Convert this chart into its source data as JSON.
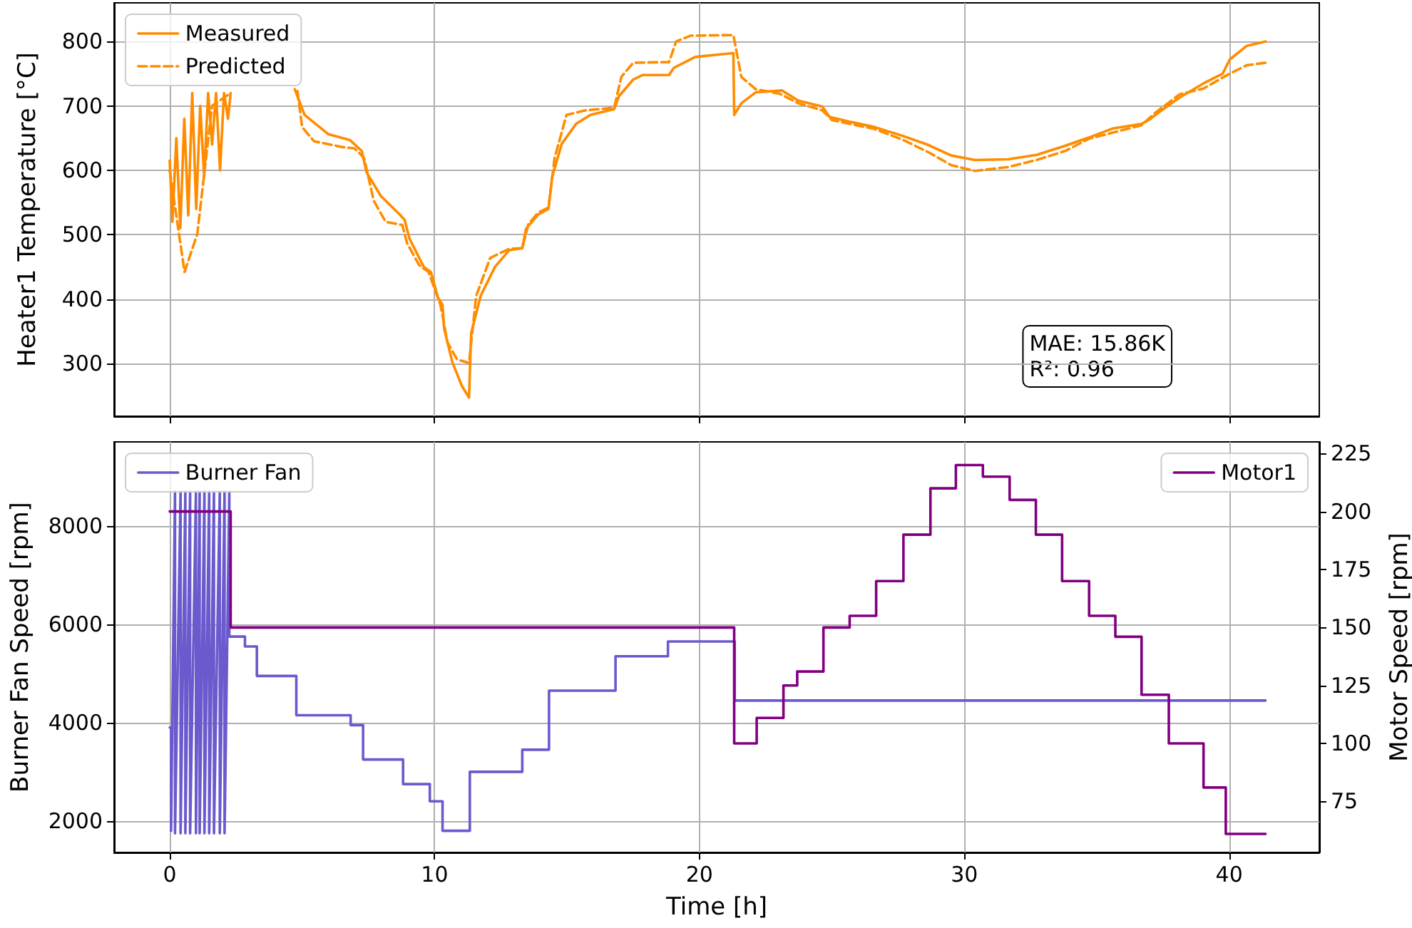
{
  "chart_data": [
    {
      "type": "line",
      "ylabel": "Heater1 Temperature [°C]",
      "xlim": [
        -2.1,
        43.4
      ],
      "xticks": [
        0,
        10,
        20,
        30,
        40
      ],
      "ylim": [
        218,
        860
      ],
      "yticks": [
        300,
        400,
        500,
        600,
        700,
        800
      ],
      "tick_labels": "y",
      "grid": true,
      "legend": "top left",
      "annotations": [
        "MAE: 15.86K\nR²: 0.96"
      ],
      "series": [
        {
          "name": "Measured",
          "color": "#ff8c00",
          "line_style": "solid",
          "x": [
            0,
            0.1,
            0.25,
            0.4,
            0.55,
            0.7,
            0.85,
            1.0,
            1.15,
            1.3,
            1.45,
            1.6,
            1.75,
            1.9,
            2.05,
            2.2,
            2.3,
            2.4,
            4.72,
            5.09,
            5.99,
            6.8,
            7.25,
            7.43,
            7.97,
            8.69,
            8.87,
            9.05,
            9.59,
            9.86,
            10.13,
            10.3,
            10.36,
            10.67,
            11.03,
            11.3,
            11.38,
            11.74,
            12.28,
            12.82,
            13.31,
            13.45,
            13.9,
            14.3,
            14.44,
            14.8,
            15.34,
            15.88,
            16.78,
            16.96,
            17.5,
            17.86,
            18.85,
            19.03,
            19.84,
            21.28,
            21.31,
            21.58,
            22.12,
            23.11,
            23.74,
            24.64,
            24.91,
            25.72,
            26.62,
            27.7,
            28.6,
            29.5,
            30.4,
            31.65,
            32.73,
            33.81,
            34.71,
            35.61,
            36.69,
            36.96,
            37.41,
            38.13,
            39.03,
            39.75,
            40.02,
            40.65,
            41.37
          ],
          "values": [
            615,
            520,
            650,
            510,
            680,
            530,
            720,
            540,
            700,
            590,
            720,
            640,
            720,
            600,
            720,
            680,
            720,
            null,
            726,
            686,
            656,
            647,
            630,
            597,
            560,
            531,
            523,
            494,
            450,
            442,
            402,
            391,
            354,
            302,
            265,
            247,
            347,
            405,
            450,
            476,
            479,
            509,
            531,
            540,
            590,
            641,
            672,
            686,
            695,
            715,
            741,
            748,
            748,
            759,
            776,
            782,
            686,
            704,
            721,
            724,
            708,
            699,
            683,
            675,
            667,
            653,
            640,
            623,
            616,
            617,
            624,
            638,
            651,
            665,
            672,
            678,
            692,
            713,
            735,
            750,
            772,
            793,
            800
          ]
        },
        {
          "name": "Predicted",
          "color": "#ff8d00",
          "line_style": "dashed",
          "x": [
            0,
            0.56,
            1.04,
            1.6,
            2.3,
            2.4,
            4.82,
            5.0,
            5.45,
            6.53,
            6.98,
            7.34,
            7.7,
            8.15,
            8.78,
            8.96,
            9.41,
            9.77,
            10.22,
            10.49,
            10.85,
            11.3,
            11.57,
            12.1,
            12.82,
            13.31,
            13.54,
            13.9,
            14.3,
            14.53,
            14.98,
            15.7,
            16.78,
            17.05,
            17.5,
            18.85,
            19.12,
            19.66,
            21.28,
            21.31,
            21.58,
            22.12,
            23.02,
            23.74,
            24.64,
            25.0,
            26.62,
            27.7,
            28.69,
            29.5,
            30.4,
            31.65,
            32.73,
            33.81,
            34.71,
            36.69,
            37.23,
            38.13,
            39.03,
            39.93,
            40.65,
            41.37
          ],
          "values": [
            600,
            442,
            501,
            700,
            720,
            null,
            723,
            667,
            645,
            636,
            634,
            619,
            553,
            520,
            515,
            487,
            453,
            442,
            391,
            332,
            306,
            301,
            405,
            464,
            478,
            479,
            516,
            534,
            542,
            619,
            686,
            693,
            697,
            745,
            767,
            768,
            800,
            809,
            810,
            810,
            745,
            726,
            719,
            704,
            693,
            678,
            664,
            647,
            627,
            608,
            599,
            605,
            616,
            630,
            649,
            670,
            690,
            718,
            727,
            748,
            763,
            767
          ]
        }
      ]
    },
    {
      "type": "line",
      "xlabel": "Time [h]",
      "ylabel": "Burner Fan Speed [rpm]",
      "y2label": "Motor Speed [rpm]",
      "xlim": [
        -2.1,
        43.4
      ],
      "xticks": [
        0,
        10,
        20,
        30,
        40
      ],
      "ylim": [
        1360,
        9710
      ],
      "yticks": [
        2000,
        4000,
        6000,
        8000
      ],
      "y2lim": [
        53,
        230
      ],
      "y2ticks": [
        75,
        100,
        125,
        150,
        175,
        200,
        225
      ],
      "grid": true,
      "legend": "top left",
      "series": [
        {
          "name": "Burner Fan",
          "color": "#6a5acd",
          "x": [
            0,
            0.05,
            0.05,
            0.2,
            0.2,
            0.41,
            0.41,
            0.59,
            0.59,
            0.77,
            0.77,
            0.99,
            0.99,
            1.13,
            1.13,
            1.31,
            1.31,
            1.49,
            1.49,
            1.67,
            1.67,
            1.89,
            1.89,
            2.07,
            2.07,
            2.25,
            2.25,
            2.84,
            2.84,
            3.29,
            3.29,
            4.78,
            4.78,
            6.83,
            6.83,
            7.3,
            7.3,
            8.81,
            8.81,
            9.82,
            9.82,
            10.3,
            10.3,
            11.33,
            11.33,
            13.31,
            13.31,
            14.32,
            14.32,
            16.83,
            16.83,
            18.81,
            18.81,
            21.33,
            21.33,
            41.37
          ],
          "values": [
            3900,
            3900,
            1800,
            8700,
            1750,
            8700,
            1750,
            8700,
            1750,
            8700,
            1750,
            8700,
            1750,
            8700,
            1750,
            8700,
            1750,
            8700,
            1750,
            8700,
            1750,
            8700,
            1750,
            8700,
            1750,
            8700,
            5750,
            5750,
            5550,
            5550,
            4950,
            4950,
            4150,
            4150,
            3950,
            3950,
            3250,
            3250,
            2750,
            2750,
            2400,
            2400,
            1800,
            1800,
            3000,
            3000,
            3450,
            3450,
            4650,
            4650,
            5350,
            5350,
            5650,
            5650,
            4450,
            4450
          ]
        },
        {
          "name": "Motor1",
          "color": "#800080",
          "axis": "y2",
          "x": [
            0,
            2.3,
            2.3,
            21.31,
            21.31,
            22.16,
            22.16,
            23.17,
            23.17,
            23.69,
            23.69,
            24.68,
            24.68,
            25.67,
            25.67,
            26.67,
            26.67,
            27.7,
            27.7,
            28.72,
            28.72,
            29.68,
            29.68,
            30.7,
            30.7,
            31.71,
            31.71,
            32.7,
            32.7,
            33.69,
            33.69,
            34.71,
            34.71,
            35.7,
            35.7,
            36.69,
            36.69,
            37.72,
            37.72,
            39.03,
            39.03,
            39.87,
            39.87,
            41.37
          ],
          "values": [
            200,
            200,
            150,
            150,
            100,
            100,
            111,
            111,
            125,
            125,
            131,
            131,
            150,
            150,
            155,
            155,
            170,
            170,
            190,
            190,
            210,
            210,
            220,
            220,
            215,
            215,
            205,
            205,
            190,
            190,
            170,
            170,
            155,
            155,
            146,
            146,
            121,
            121,
            100,
            100,
            81,
            81,
            61,
            61
          ]
        }
      ]
    }
  ]
}
